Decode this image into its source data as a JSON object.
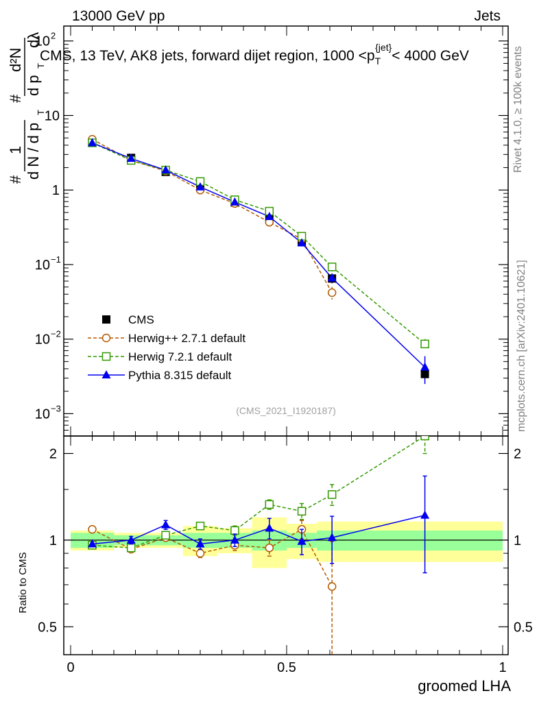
{
  "header": {
    "left": "13000 GeV pp",
    "right": "Jets"
  },
  "side_text": {
    "rivet": "Rivet 4.1.0, ≥ 100k events",
    "mcplots": "mcplots.cern.ch [arXiv:2401.10621]"
  },
  "chart_data": {
    "type": "line",
    "title_parts": {
      "main": "CMS, 13 TeV, AK8 jets, forward dijet region, 1000 <p",
      "sub": "T",
      "sup": "{jet}",
      "tail": "< 4000 GeV"
    },
    "analysis_id": "(CMS_2021_I1920187)",
    "xlabel": "groomed LHA",
    "ylabel_main": "1/dN/dpT dN2/dpT dlambda",
    "ylabel_ratio": "Ratio to CMS",
    "xlim": [
      0,
      1
    ],
    "ylim_main_log10": [
      -3.3,
      2.2
    ],
    "ylim_ratio": [
      0.4,
      2.3
    ],
    "x_ticks": [
      "0",
      "0.5",
      "1"
    ],
    "y_ticks_main": [
      "10^-3",
      "10^-2",
      "10^-1",
      "1",
      "10",
      "10^2"
    ],
    "y_ticks_ratio": [
      "0.5",
      "1",
      "2"
    ],
    "bin_centers": [
      0.05,
      0.14,
      0.22,
      0.3,
      0.38,
      0.46,
      0.535,
      0.605,
      0.82
    ],
    "bin_edges": [
      0,
      0.1,
      0.18,
      0.26,
      0.34,
      0.42,
      0.5,
      0.57,
      0.64,
      1.0
    ],
    "data": {
      "name": "CMS",
      "values": [
        4.4,
        2.7,
        1.75,
        1.15,
        0.68,
        0.41,
        0.2,
        0.065,
        0.0034
      ],
      "ratio_band_inner": [
        0.06,
        0.04,
        0.04,
        0.06,
        0.06,
        0.08,
        0.06,
        0.08,
        0.08
      ],
      "ratio_band_outer": [
        0.08,
        0.06,
        0.06,
        0.12,
        0.1,
        0.2,
        0.14,
        0.16,
        0.16
      ]
    },
    "series": [
      {
        "name": "Herwig++ 2.7.1 default",
        "color": "#b35900",
        "marker": "circle-open",
        "dash": "5,3",
        "values": [
          4.8,
          2.5,
          1.8,
          1.0,
          0.66,
          0.37,
          0.22,
          0.042,
          null
        ],
        "ratio": [
          1.09,
          0.93,
          1.02,
          0.9,
          0.96,
          0.94,
          1.09,
          0.69,
          null
        ],
        "ratio_err": [
          0.0,
          0.02,
          0.02,
          0.03,
          0.04,
          0.06,
          0.08,
          0.3,
          null
        ],
        "err": [
          0.0,
          0.0,
          0.0,
          0.0,
          0.0,
          0.0,
          0.0,
          0.008,
          null
        ]
      },
      {
        "name": "Herwig 7.2.1 default",
        "color": "#339900",
        "marker": "square-open",
        "dash": "5,3",
        "values": [
          4.3,
          2.5,
          1.85,
          1.3,
          0.74,
          0.52,
          0.24,
          0.093,
          0.0086
        ],
        "ratio": [
          0.96,
          0.94,
          1.04,
          1.12,
          1.08,
          1.33,
          1.26,
          1.44,
          2.3
        ],
        "ratio_err": [
          0.0,
          0.02,
          0.02,
          0.03,
          0.04,
          0.05,
          0.08,
          0.12,
          0.3
        ],
        "err": [
          0.0,
          0.0,
          0.0,
          0.0,
          0.0,
          0.0,
          0.0,
          0.012,
          0.0014
        ]
      },
      {
        "name": "Pythia 8.315 default",
        "color": "#0000ee",
        "marker": "triangle",
        "dash": "",
        "values": [
          4.3,
          2.65,
          1.85,
          1.1,
          0.69,
          0.44,
          0.195,
          0.066,
          0.0042
        ],
        "ratio": [
          0.97,
          1.0,
          1.13,
          0.97,
          1.0,
          1.1,
          0.99,
          1.02,
          1.22
        ],
        "ratio_err": [
          0.0,
          0.03,
          0.04,
          0.04,
          0.05,
          0.09,
          0.1,
          0.19,
          0.45
        ],
        "err": [
          0.0,
          0.0,
          0.0,
          0.0,
          0.0,
          0.0,
          0.0,
          0.01,
          0.0017
        ]
      }
    ]
  }
}
